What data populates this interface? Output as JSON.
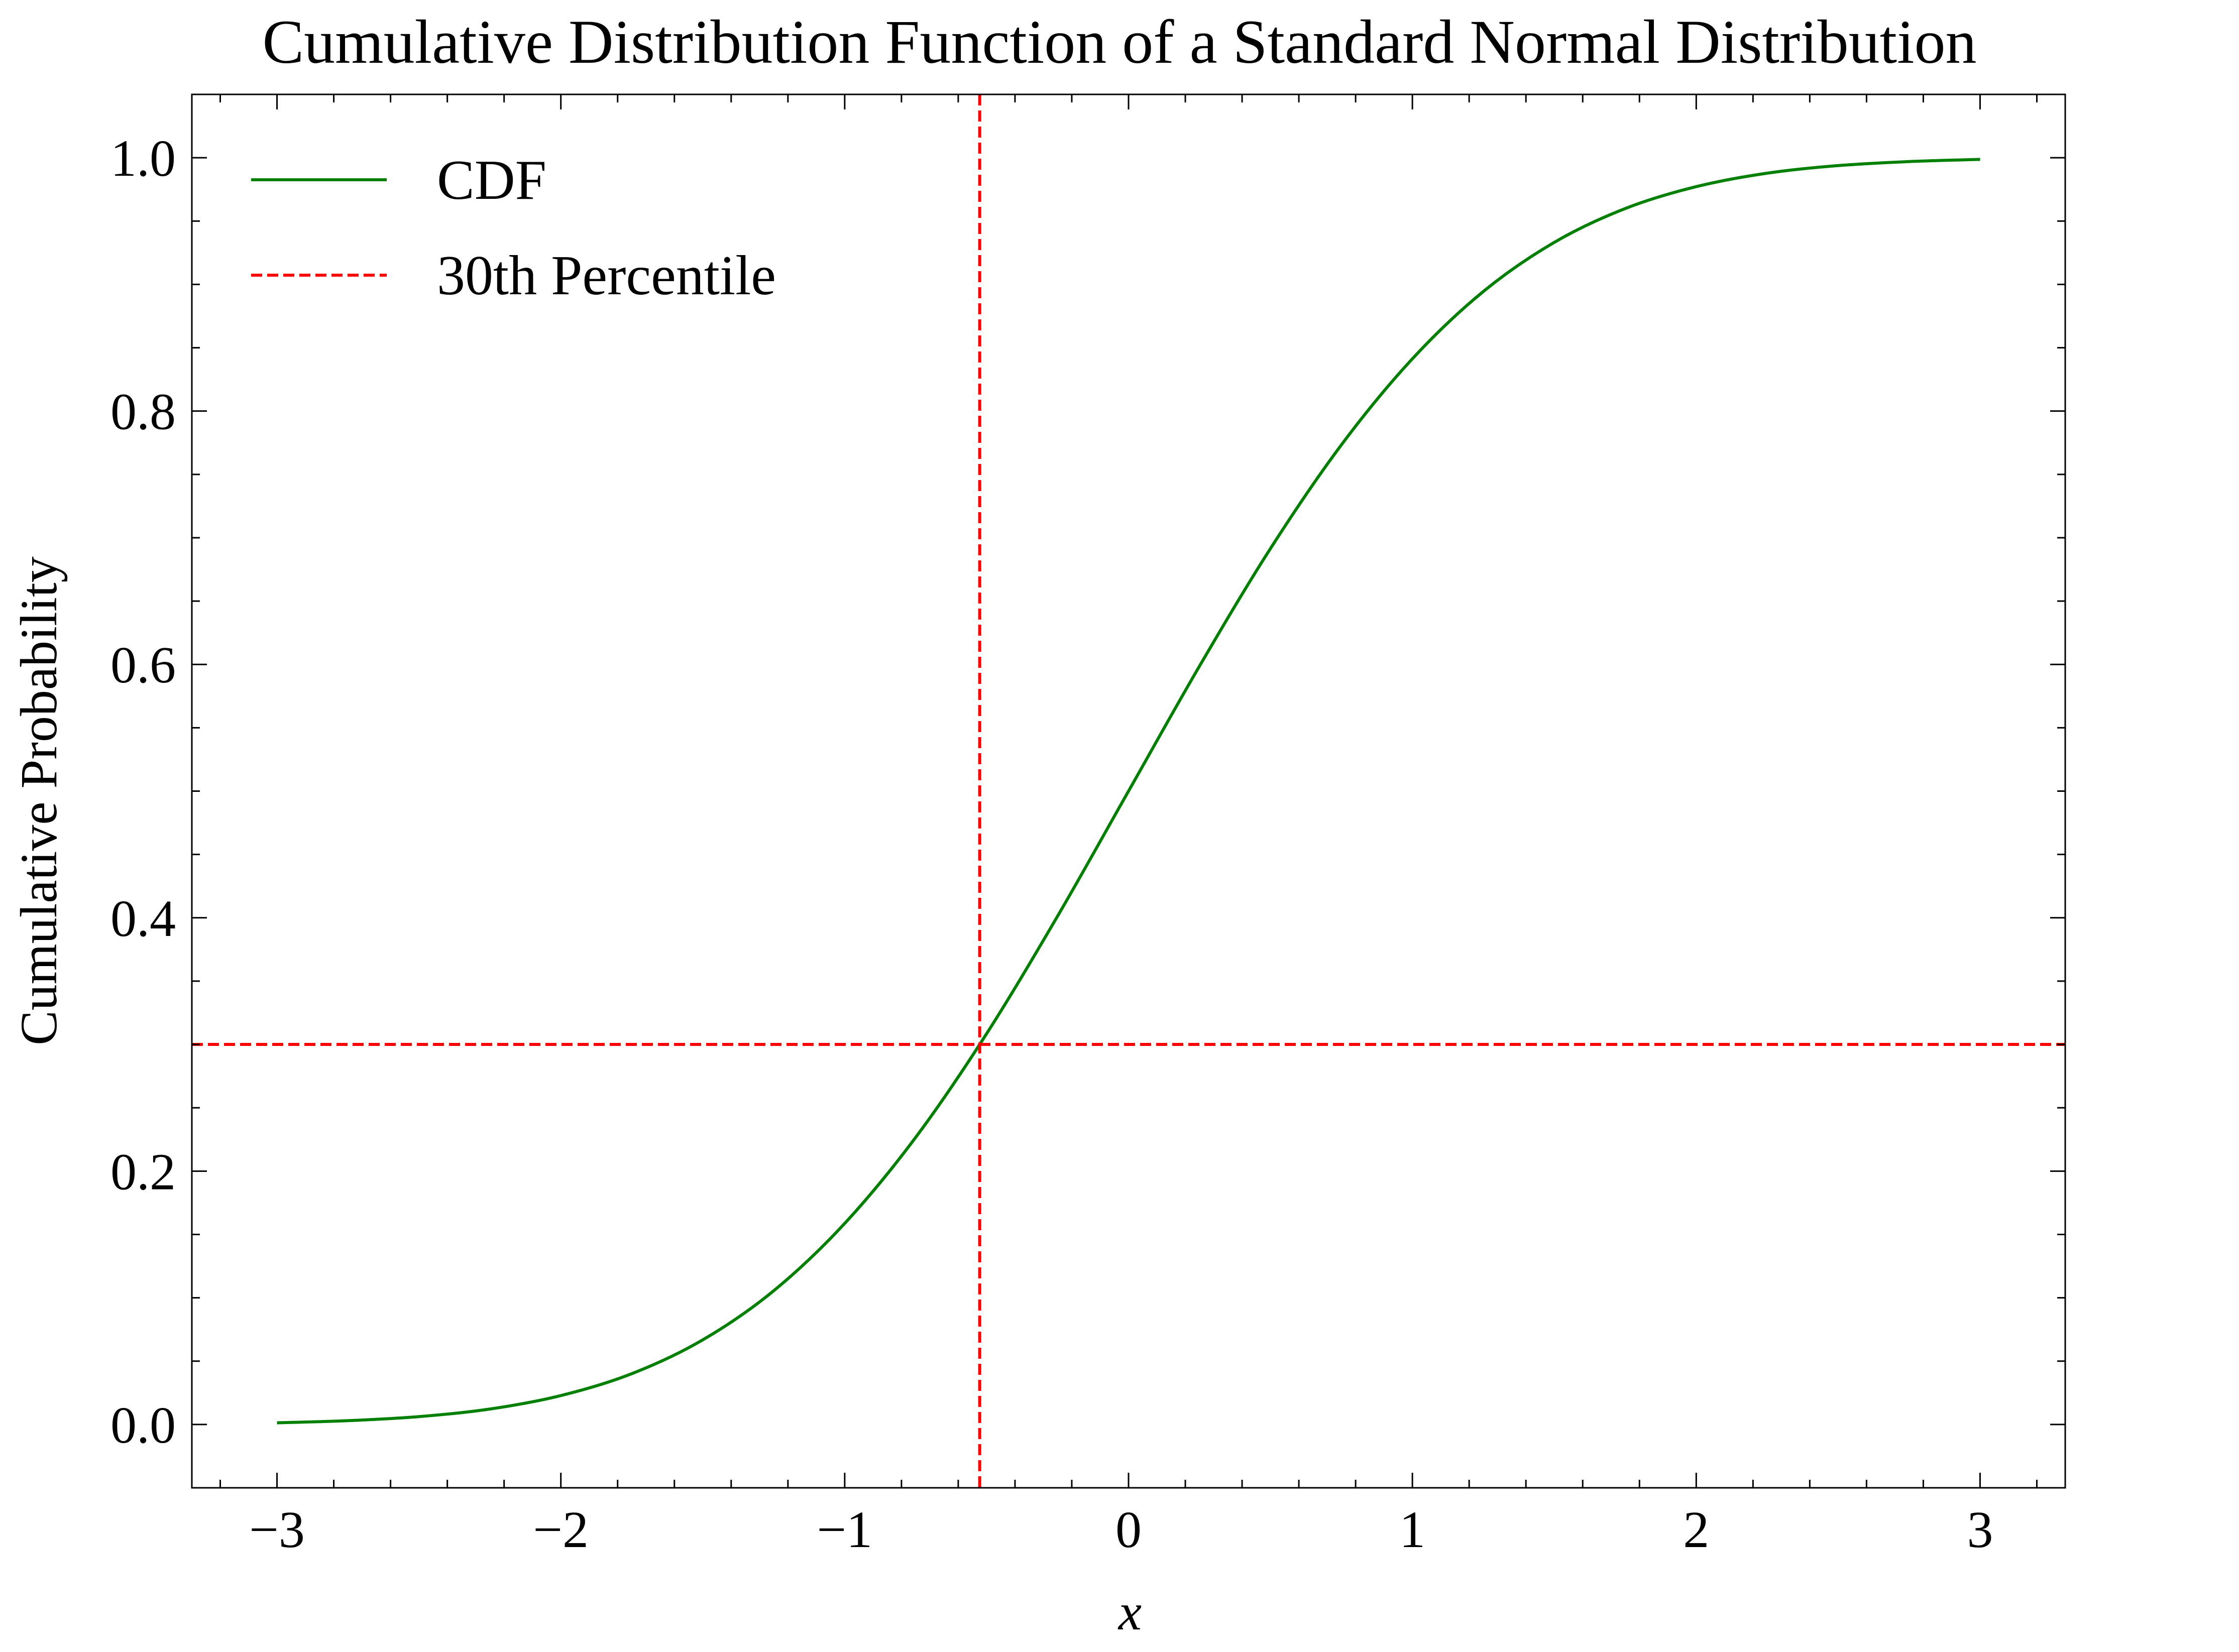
{
  "chart_data": {
    "type": "line",
    "title": "Cumulative Distribution Function of a Standard Normal Distribution",
    "xlabel": "x",
    "ylabel": "Cumulative Probability",
    "xlim": [
      -3.3,
      3.3
    ],
    "ylim": [
      -0.05,
      1.05
    ],
    "x_ticks": [
      -3,
      -2,
      -1,
      0,
      1,
      2,
      3
    ],
    "x_tick_labels": [
      "−3",
      "−2",
      "−1",
      "0",
      "1",
      "2",
      "3"
    ],
    "y_ticks": [
      0.0,
      0.2,
      0.4,
      0.6,
      0.8,
      1.0
    ],
    "y_tick_labels": [
      "0.0",
      "0.2",
      "0.4",
      "0.6",
      "0.8",
      "1.0"
    ],
    "grid": false,
    "legend_position": "top-left",
    "series": [
      {
        "name": "CDF",
        "color": "#008000",
        "style": "solid",
        "x": [
          -3.0,
          -2.75,
          -2.5,
          -2.25,
          -2.0,
          -1.75,
          -1.5,
          -1.25,
          -1.0,
          -0.75,
          -0.5,
          -0.25,
          0.0,
          0.25,
          0.5,
          0.75,
          1.0,
          1.25,
          1.5,
          1.75,
          2.0,
          2.25,
          2.5,
          2.75,
          3.0
        ],
        "y": [
          0.0013,
          0.003,
          0.0062,
          0.0122,
          0.0228,
          0.0401,
          0.0668,
          0.1056,
          0.1587,
          0.2266,
          0.3085,
          0.4013,
          0.5,
          0.5987,
          0.6915,
          0.7734,
          0.8413,
          0.8944,
          0.9332,
          0.9599,
          0.9772,
          0.9878,
          0.9938,
          0.997,
          0.9987
        ]
      }
    ],
    "reference_lines": {
      "name": "30th Percentile",
      "color": "#ff0000",
      "style": "dashed",
      "x_value": -0.5244,
      "y_value": 0.3
    }
  }
}
